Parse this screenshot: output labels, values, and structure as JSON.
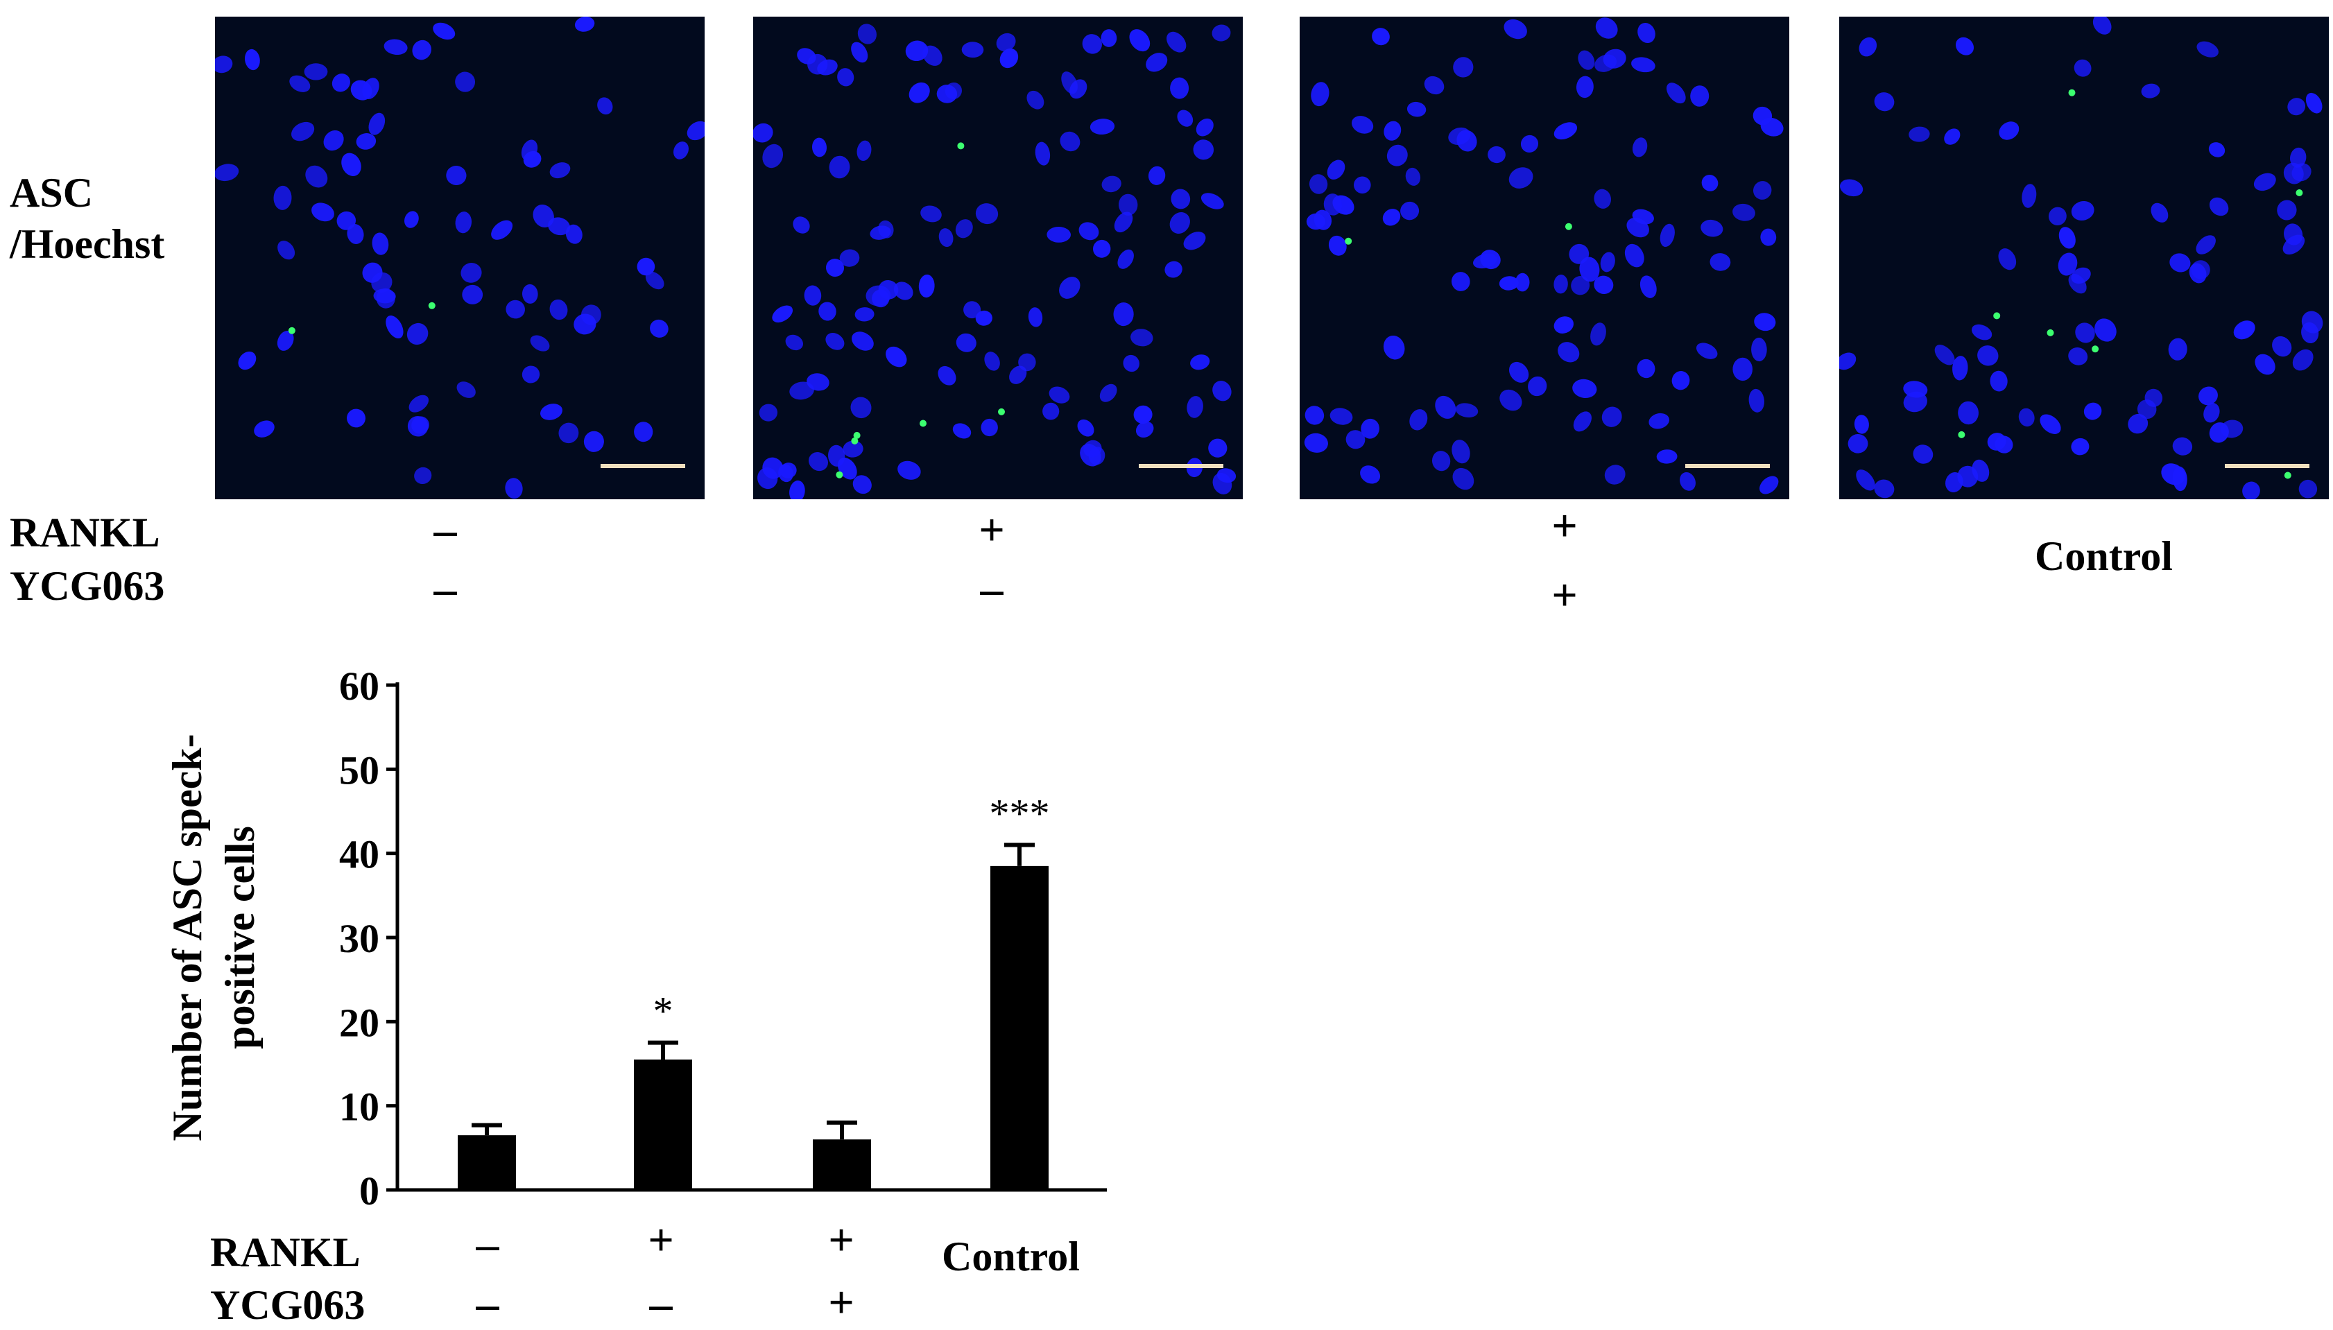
{
  "image_label_line1": "ASC",
  "image_label_line2": "/Hoechst",
  "row_labels": {
    "rankl": "RANKL",
    "ycg063": "YCG063"
  },
  "panels": [
    {
      "rankl": "–",
      "ycg063": "–",
      "label": ""
    },
    {
      "rankl": "+",
      "ycg063": "–",
      "label": ""
    },
    {
      "rankl": "+",
      "ycg063": "+",
      "label": ""
    },
    {
      "rankl": "",
      "ycg063": "",
      "label": "Control"
    }
  ],
  "colors": {
    "nuclei": "#1a1aff",
    "speck": "#3cff70",
    "background": "#020a1e",
    "scale_bar": "#f0dfbe",
    "bar": "#000000"
  },
  "chart_data": {
    "type": "bar",
    "ylabel": "Number of ASC speck-positive cells",
    "ylabel_lines": [
      "Number of ASC speck-",
      "positive cells"
    ],
    "ylim": [
      0,
      60
    ],
    "yticks": [
      0,
      10,
      20,
      30,
      40,
      50,
      60
    ],
    "categories": [
      {
        "rankl": "–",
        "ycg063": "–",
        "label": ""
      },
      {
        "rankl": "+",
        "ycg063": "–",
        "label": ""
      },
      {
        "rankl": "+",
        "ycg063": "+",
        "label": ""
      },
      {
        "rankl": "",
        "ycg063": "",
        "label": "Control"
      }
    ],
    "values": [
      6.5,
      15.5,
      6.0,
      38.5
    ],
    "errors": [
      1.2,
      2.0,
      2.0,
      2.5
    ],
    "annotations": [
      "",
      "*",
      "",
      "***"
    ],
    "row_labels": {
      "rankl": "RANKL",
      "ycg063": "YCG063"
    },
    "grid": false,
    "legend": "none"
  }
}
